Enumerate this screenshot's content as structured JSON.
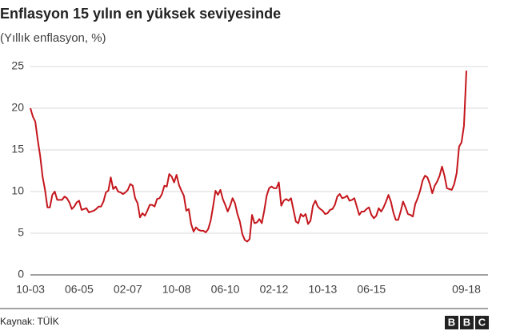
{
  "chart_data": {
    "type": "line",
    "title": "Enflasyon 15 yılın en yüksek seviyesinde",
    "subtitle": "(Yıllık enflasyon, %)",
    "source": "Kaynak: TÜİK",
    "logo": [
      "B",
      "B",
      "C"
    ],
    "color": "#c4161c",
    "grid": true,
    "ylim": [
      0,
      25
    ],
    "yticks": [
      0,
      5,
      10,
      15,
      20,
      25
    ],
    "categories": [
      "10-03",
      null,
      null,
      null,
      null,
      null,
      null,
      null,
      null,
      null,
      null,
      null,
      null,
      null,
      null,
      null,
      null,
      null,
      null,
      null,
      "06-05",
      null,
      null,
      null,
      null,
      null,
      null,
      null,
      null,
      null,
      null,
      null,
      null,
      null,
      null,
      null,
      null,
      null,
      null,
      null,
      "02-07",
      null,
      null,
      null,
      null,
      null,
      null,
      null,
      null,
      null,
      null,
      null,
      null,
      null,
      null,
      null,
      null,
      null,
      null,
      null,
      "10-08",
      null,
      null,
      null,
      null,
      null,
      null,
      null,
      null,
      null,
      null,
      null,
      null,
      null,
      null,
      null,
      null,
      null,
      null,
      null,
      "06-10",
      null,
      null,
      null,
      null,
      null,
      null,
      null,
      null,
      null,
      null,
      null,
      null,
      null,
      null,
      null,
      null,
      null,
      null,
      null,
      "02-12",
      null,
      null,
      null,
      null,
      null,
      null,
      null,
      null,
      null,
      null,
      null,
      null,
      null,
      null,
      null,
      null,
      null,
      null,
      null,
      "10-13",
      null,
      null,
      null,
      null,
      null,
      null,
      null,
      null,
      null,
      null,
      null,
      null,
      null,
      null,
      null,
      null,
      null,
      null,
      null,
      "06-15",
      null,
      null,
      null,
      null,
      null,
      null,
      null,
      null,
      null,
      null,
      null,
      null,
      null,
      null,
      null,
      null,
      null,
      null,
      null,
      null,
      null,
      null,
      null,
      null,
      null,
      null,
      null,
      null,
      null,
      null,
      null,
      null,
      null,
      null,
      null,
      null,
      null,
      null,
      "09-18"
    ],
    "values": [
      20.0,
      19.0,
      18.4,
      16.2,
      14.3,
      11.8,
      10.2,
      8.1,
      8.1,
      9.6,
      10.0,
      9.0,
      9.0,
      9.0,
      9.4,
      9.2,
      8.7,
      7.9,
      8.2,
      8.7,
      8.9,
      7.8,
      7.9,
      8.0,
      7.5,
      7.6,
      7.7,
      7.9,
      8.2,
      8.2,
      8.8,
      9.9,
      10.1,
      11.7,
      10.3,
      10.6,
      10.0,
      9.9,
      9.7,
      9.9,
      10.2,
      10.9,
      10.7,
      9.2,
      8.6,
      6.9,
      7.4,
      7.1,
      7.7,
      8.4,
      8.4,
      8.2,
      9.1,
      9.2,
      9.7,
      10.7,
      10.6,
      12.1,
      11.8,
      11.1,
      12.0,
      10.8,
      10.1,
      9.5,
      7.7,
      7.9,
      6.1,
      5.2,
      5.7,
      5.4,
      5.3,
      5.3,
      5.1,
      5.5,
      6.5,
      8.2,
      10.1,
      9.6,
      10.2,
      9.1,
      8.4,
      7.6,
      8.3,
      9.2,
      8.6,
      7.3,
      6.4,
      4.9,
      4.2,
      4.0,
      4.3,
      7.2,
      6.2,
      6.3,
      6.7,
      6.2,
      7.7,
      9.5,
      10.4,
      10.6,
      10.4,
      10.4,
      11.1,
      8.3,
      8.9,
      9.1,
      8.9,
      9.2,
      7.8,
      6.4,
      6.2,
      7.3,
      7.0,
      7.3,
      6.1,
      6.5,
      8.3,
      8.9,
      8.2,
      7.9,
      7.7,
      7.3,
      7.4,
      7.8,
      7.9,
      8.4,
      9.4,
      9.7,
      9.2,
      9.3,
      9.5,
      8.9,
      9.0,
      9.2,
      8.2,
      7.2,
      7.6,
      7.6,
      7.9,
      8.1,
      7.2,
      6.8,
      7.1,
      8.0,
      7.6,
      8.1,
      8.8,
      9.6,
      8.8,
      7.5,
      6.6,
      6.6,
      7.6,
      8.8,
      8.1,
      7.3,
      7.2,
      7.0,
      8.5,
      9.2,
      10.1,
      11.3,
      11.9,
      11.7,
      10.9,
      9.8,
      10.7,
      11.2,
      11.9,
      13.0,
      11.9,
      10.4,
      10.3,
      10.2,
      10.9,
      12.2,
      15.4,
      15.9,
      17.9,
      24.5
    ]
  }
}
